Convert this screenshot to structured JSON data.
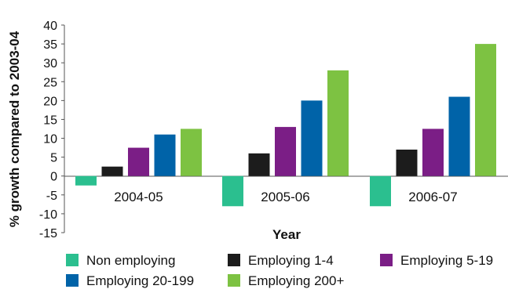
{
  "chart_data": {
    "type": "bar",
    "categories": [
      "2004-05",
      "2005-06",
      "2006-07"
    ],
    "series": [
      {
        "name": "Non employing",
        "color": "#2bbf8f",
        "values": [
          -2.5,
          -8,
          -8
        ]
      },
      {
        "name": "Employing 1-4",
        "color": "#1c1c1c",
        "values": [
          2.5,
          6,
          7
        ]
      },
      {
        "name": "Employing 5-19",
        "color": "#7b1e86",
        "values": [
          7.5,
          13,
          12.5
        ]
      },
      {
        "name": "Employing 20-199",
        "color": "#0063a8",
        "values": [
          11,
          20,
          21
        ]
      },
      {
        "name": "Employing 200+",
        "color": "#7dc242",
        "values": [
          12.5,
          28,
          35
        ]
      }
    ],
    "xlabel": "Year",
    "ylabel": "% growth compared to 2003-04",
    "ylim": [
      -15,
      40
    ],
    "yticks": [
      "40",
      "35",
      "30",
      "25",
      "20",
      "15",
      "10",
      "5",
      "0",
      "-5",
      "-10",
      "-15"
    ],
    "grid": false,
    "legend_position": "bottom"
  }
}
